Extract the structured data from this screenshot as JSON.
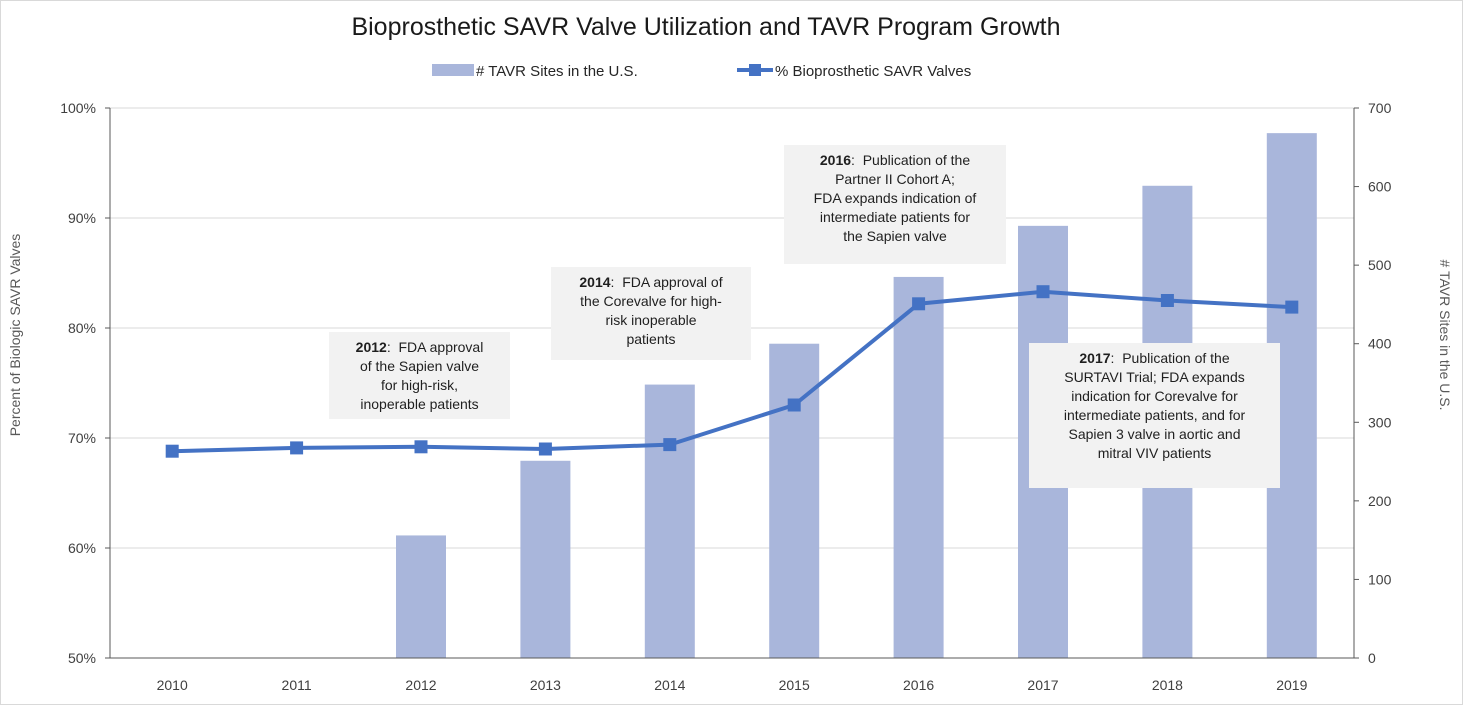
{
  "chart_data": {
    "type": "bar",
    "title": "Bioprosthetic SAVR Valve Utilization and TAVR Program Growth",
    "categories": [
      "2010",
      "2011",
      "2012",
      "2013",
      "2014",
      "2015",
      "2016",
      "2017",
      "2018",
      "2019"
    ],
    "series": [
      {
        "name": "# TAVR Sites in the U.S.",
        "type": "bar",
        "axis": "right",
        "values": [
          0,
          0,
          156,
          251,
          348,
          400,
          485,
          550,
          601,
          668
        ],
        "color": "#a9b6db"
      },
      {
        "name": "% Bioprosthetic SAVR Valves",
        "type": "line",
        "axis": "left",
        "values": [
          68.8,
          69.1,
          69.2,
          69.0,
          69.4,
          73.0,
          82.2,
          83.3,
          82.5,
          81.9
        ],
        "color": "#4472c4"
      }
    ],
    "y_left": {
      "label": "Percent of Biologic SAVR Valves",
      "range": [
        50,
        100
      ],
      "ticks": [
        50,
        60,
        70,
        80,
        90,
        100
      ],
      "tick_labels": [
        "50%",
        "60%",
        "70%",
        "80%",
        "90%",
        "100%"
      ]
    },
    "y_right": {
      "label": "# TAVR Sites in the U.S.",
      "range": [
        0,
        700
      ],
      "ticks": [
        0,
        100,
        200,
        300,
        400,
        500,
        600,
        700
      ],
      "tick_labels": [
        "0",
        "100",
        "200",
        "300",
        "400",
        "500",
        "600",
        "700"
      ]
    },
    "grid": true,
    "legend_position": "top-center"
  },
  "annotations": [
    {
      "year": "2012",
      "lines": [
        "FDA approval",
        "of the Sapien valve",
        "for high-risk,",
        "inoperable patients"
      ]
    },
    {
      "year": "2014",
      "lines": [
        "FDA approval of",
        "the Corevalve for high-",
        "risk inoperable",
        "patients"
      ]
    },
    {
      "year": "2016",
      "lines": [
        "Publication of the",
        "Partner II Cohort A;",
        "FDA expands indication of",
        "intermediate patients for",
        "the Sapien valve"
      ]
    },
    {
      "year": "2017",
      "lines": [
        "Publication of the",
        "SURTAVI Trial; FDA expands",
        "indication for Corevalve for",
        "intermediate patients, and for",
        "Sapien 3 valve in aortic and",
        "mitral VIV patients"
      ]
    }
  ]
}
